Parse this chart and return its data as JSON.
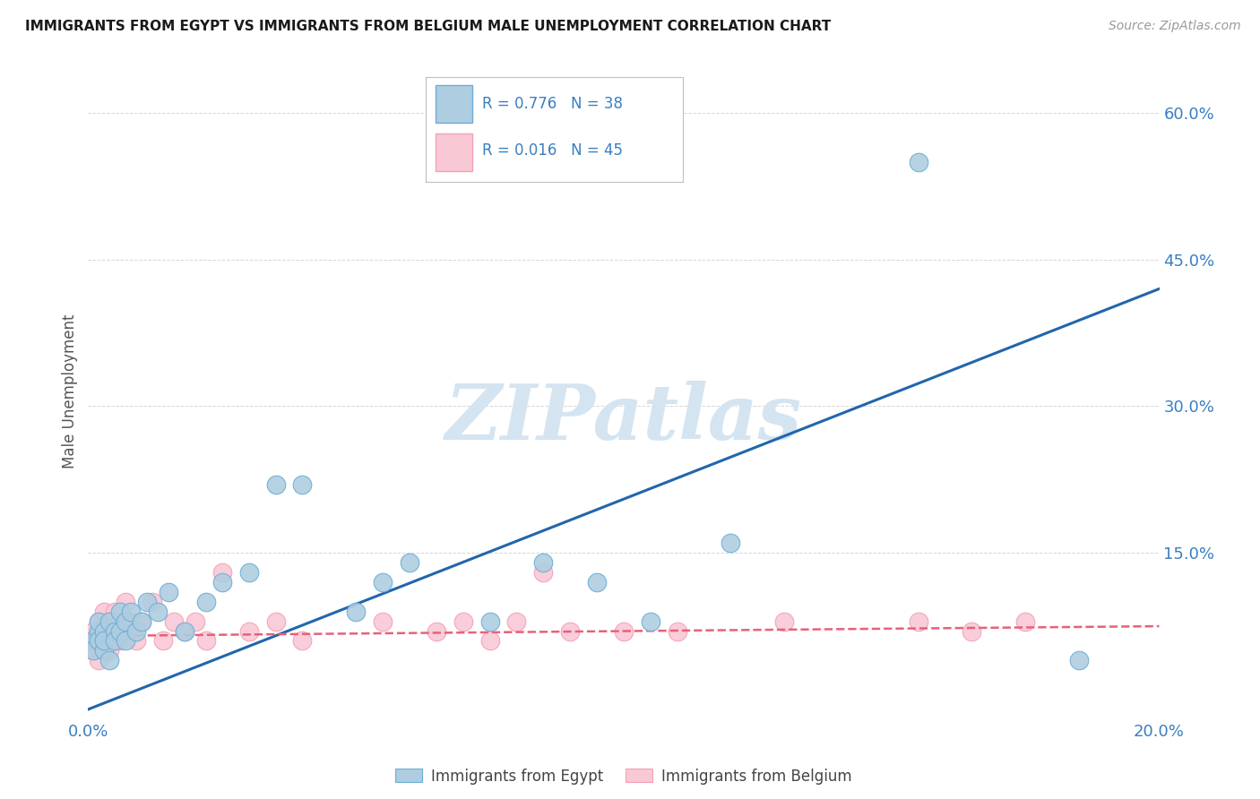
{
  "title": "IMMIGRANTS FROM EGYPT VS IMMIGRANTS FROM BELGIUM MALE UNEMPLOYMENT CORRELATION CHART",
  "source": "Source: ZipAtlas.com",
  "ylabel": "Male Unemployment",
  "legend_label1": "Immigrants from Egypt",
  "legend_label2": "Immigrants from Belgium",
  "R1": "0.776",
  "N1": "38",
  "R2": "0.016",
  "N2": "45",
  "xlim": [
    0.0,
    0.2
  ],
  "ylim": [
    -0.02,
    0.65
  ],
  "xticks": [
    0.0,
    0.04,
    0.08,
    0.12,
    0.16,
    0.2
  ],
  "xticklabels": [
    "0.0%",
    "",
    "",
    "",
    "",
    "20.0%"
  ],
  "yticks_right": [
    0.15,
    0.3,
    0.45,
    0.6
  ],
  "ytick_labels_right": [
    "15.0%",
    "30.0%",
    "45.0%",
    "60.0%"
  ],
  "color_egypt_edge": "#6baed6",
  "color_egypt_fill": "#aecde0",
  "color_belgium_edge": "#f4a0b5",
  "color_belgium_fill": "#f9c8d5",
  "color_line_egypt": "#2166ac",
  "color_line_belgium": "#e8607a",
  "watermark_color": "#d4e4f0",
  "grid_color": "#cccccc",
  "background_color": "#ffffff",
  "egypt_x": [
    0.001,
    0.001,
    0.002,
    0.002,
    0.002,
    0.003,
    0.003,
    0.003,
    0.004,
    0.004,
    0.005,
    0.005,
    0.006,
    0.006,
    0.007,
    0.007,
    0.008,
    0.009,
    0.01,
    0.011,
    0.013,
    0.015,
    0.018,
    0.022,
    0.025,
    0.03,
    0.035,
    0.04,
    0.05,
    0.055,
    0.06,
    0.075,
    0.085,
    0.095,
    0.105,
    0.12,
    0.155,
    0.185
  ],
  "egypt_y": [
    0.06,
    0.05,
    0.07,
    0.06,
    0.08,
    0.05,
    0.07,
    0.06,
    0.04,
    0.08,
    0.07,
    0.06,
    0.09,
    0.07,
    0.08,
    0.06,
    0.09,
    0.07,
    0.08,
    0.1,
    0.09,
    0.11,
    0.07,
    0.1,
    0.12,
    0.13,
    0.22,
    0.22,
    0.09,
    0.12,
    0.14,
    0.08,
    0.14,
    0.12,
    0.08,
    0.16,
    0.55,
    0.04
  ],
  "belgium_x": [
    0.001,
    0.001,
    0.001,
    0.002,
    0.002,
    0.002,
    0.002,
    0.003,
    0.003,
    0.003,
    0.004,
    0.004,
    0.004,
    0.005,
    0.005,
    0.005,
    0.006,
    0.006,
    0.007,
    0.008,
    0.009,
    0.01,
    0.012,
    0.014,
    0.016,
    0.018,
    0.02,
    0.022,
    0.025,
    0.03,
    0.035,
    0.04,
    0.055,
    0.065,
    0.07,
    0.075,
    0.08,
    0.085,
    0.09,
    0.1,
    0.11,
    0.13,
    0.155,
    0.165,
    0.175
  ],
  "belgium_y": [
    0.05,
    0.06,
    0.07,
    0.04,
    0.06,
    0.07,
    0.08,
    0.05,
    0.06,
    0.09,
    0.05,
    0.07,
    0.08,
    0.06,
    0.07,
    0.09,
    0.08,
    0.06,
    0.1,
    0.08,
    0.06,
    0.08,
    0.1,
    0.06,
    0.08,
    0.07,
    0.08,
    0.06,
    0.13,
    0.07,
    0.08,
    0.06,
    0.08,
    0.07,
    0.08,
    0.06,
    0.08,
    0.13,
    0.07,
    0.07,
    0.07,
    0.08,
    0.08,
    0.07,
    0.08
  ]
}
